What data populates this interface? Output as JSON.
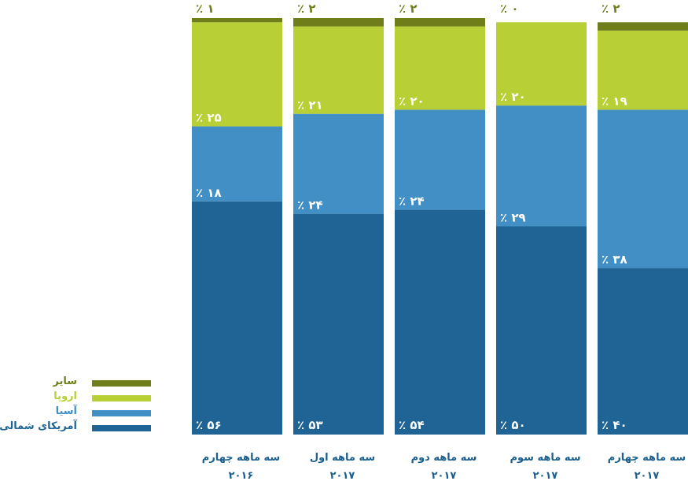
{
  "chart_data": {
    "type": "bar",
    "stacked": true,
    "percent_format": "٪ {v}",
    "categories": [
      [
        "سه ماهه چهارم",
        "۲۰۱۶"
      ],
      [
        "سه ماهه اول",
        "۲۰۱۷"
      ],
      [
        "سه ماهه دوم",
        "۲۰۱۷"
      ],
      [
        "سه ماهه سوم",
        "۲۰۱۷"
      ],
      [
        "سه ماهه چهارم",
        "۲۰۱۷"
      ]
    ],
    "series": [
      {
        "name": "آمریکای شمالی",
        "color": "#1f6494",
        "values": [
          56,
          53,
          54,
          50,
          40
        ],
        "labels": [
          "۵۶",
          "۵۳",
          "۵۴",
          "۵۰",
          "۴۰"
        ]
      },
      {
        "name": "آسیا",
        "color": "#418fc5",
        "values": [
          18,
          24,
          24,
          29,
          38
        ],
        "labels": [
          "۱۸",
          "۲۴",
          "۲۴",
          "۲۹",
          "۳۸"
        ]
      },
      {
        "name": "اروپا",
        "color": "#b8cf36",
        "values": [
          25,
          21,
          20,
          20,
          19
        ],
        "labels": [
          "۲۵",
          "۲۱",
          "۲۰",
          "۲۰",
          "۱۹"
        ]
      },
      {
        "name": "سایر",
        "color": "#6f7e1b",
        "values": [
          1,
          2,
          2,
          0,
          2
        ],
        "labels": [
          "۱",
          "۲",
          "۲",
          "۰",
          "۲"
        ]
      }
    ],
    "ylim": [
      0,
      100
    ],
    "legend_position": "bottom-left",
    "grid": false
  }
}
